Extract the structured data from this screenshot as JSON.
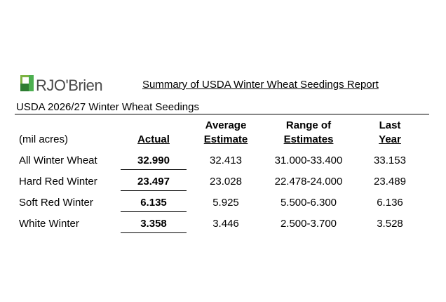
{
  "brand": {
    "logo_text": "RJO'Brien",
    "logo_colors": {
      "green": "#7cb342",
      "dark_green": "#2e7d32"
    }
  },
  "report_title": "Summary of USDA Winter Wheat Seedings Report",
  "subtitle": "USDA 2026/27 Winter Wheat Seedings",
  "table": {
    "units_label": "(mil acres)",
    "columns": {
      "actual": {
        "line1": "Actual"
      },
      "average": {
        "line1": "Average",
        "line2": "Estimate"
      },
      "range": {
        "line1": "Range of",
        "line2": "Estimates"
      },
      "last": {
        "line1": "Last",
        "line2": "Year"
      }
    },
    "rows": [
      {
        "label": "All Winter Wheat",
        "actual": "32.990",
        "average": "32.413",
        "range": "31.000-33.400",
        "last": "33.153"
      },
      {
        "label": "Hard Red Winter",
        "actual": "23.497",
        "average": "23.028",
        "range": "22.478-24.000",
        "last": "23.489"
      },
      {
        "label": "Soft Red Winter",
        "actual": "6.135",
        "average": "5.925",
        "range": "5.500-6.300",
        "last": "6.136"
      },
      {
        "label": "White Winter",
        "actual": "3.358",
        "average": "3.446",
        "range": "2.500-3.700",
        "last": "3.528"
      }
    ]
  }
}
